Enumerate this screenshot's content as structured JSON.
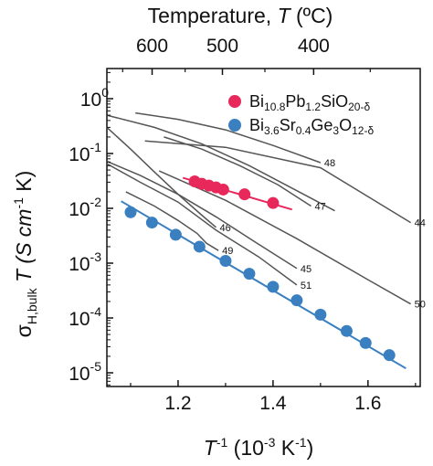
{
  "chart_data": {
    "type": "scatter",
    "xlabel": {
      "main": "T",
      "sup1": "-1",
      "rest": " (10",
      "sup2": "-3",
      "rest2": " K",
      "sup3": "-1",
      "close": ")"
    },
    "ylabel": {
      "sigma": "σ",
      "sub": "H,bulk",
      "rest": " T (S cm",
      "sup": "-1",
      "close": " K)"
    },
    "top_axis_label": {
      "pre": "Temperature, ",
      "var": "T",
      "post": " (ºC)"
    },
    "xlim": [
      1.05,
      1.71
    ],
    "ylim_log10": [
      -5.25,
      0.55
    ],
    "x_ticks": [
      1.2,
      1.4,
      1.6
    ],
    "x_tick_labels": [
      "1.2",
      "1.4",
      "1.6"
    ],
    "y_ticks_log10": [
      0,
      -1,
      -2,
      -3,
      -4,
      -5
    ],
    "y_tick_labels": [
      {
        "base": "10",
        "exp": "0"
      },
      {
        "base": "10",
        "exp": "-1"
      },
      {
        "base": "10",
        "exp": "-2"
      },
      {
        "base": "10",
        "exp": "-3"
      },
      {
        "base": "10",
        "exp": "-4"
      },
      {
        "base": "10",
        "exp": "-5"
      }
    ],
    "top_ticks_celsius": [
      600,
      500,
      400
    ],
    "top_tick_labels": [
      "600",
      "500",
      "400"
    ],
    "series": [
      {
        "name": "Bi10.8Pb1.2SiO20-δ",
        "legend": {
          "a": "Bi",
          "a_sub": "10.8",
          "b": "Pb",
          "b_sub": "1.2",
          "c": "SiO",
          "c_sub": "20-δ"
        },
        "color": "#e8285a",
        "x": [
          1.235,
          1.25,
          1.265,
          1.28,
          1.295,
          1.34,
          1.4
        ],
        "y": [
          0.031,
          0.028,
          0.026,
          0.024,
          0.022,
          0.018,
          0.0125
        ],
        "fit_x": [
          1.21,
          1.44
        ],
        "fit_y": [
          0.036,
          0.0095
        ]
      },
      {
        "name": "Bi3.6Sr0.4Ge3O12-δ",
        "legend": {
          "a": "Bi",
          "a_sub": "3.6",
          "b": "Sr",
          "b_sub": "0.4",
          "c": "Ge",
          "c_sub": "3",
          "d": "O",
          "d_sub": "12-δ"
        },
        "color": "#3a7fc0",
        "x": [
          1.1,
          1.145,
          1.195,
          1.245,
          1.3,
          1.35,
          1.4,
          1.45,
          1.5,
          1.555,
          1.595,
          1.645
        ],
        "y": [
          0.0085,
          0.0055,
          0.0033,
          0.002,
          0.0011,
          0.00064,
          0.00037,
          0.00021,
          0.000115,
          5.8e-05,
          3.5e-05,
          2.1e-05
        ],
        "fit_x": [
          1.08,
          1.68
        ],
        "fit_y": [
          0.0135,
          1.2e-05
        ]
      }
    ],
    "reference_curves": [
      {
        "label": "48",
        "x": [
          1.11,
          1.2,
          1.3,
          1.4,
          1.5
        ],
        "y": [
          0.55,
          0.42,
          0.27,
          0.14,
          0.068
        ]
      },
      {
        "label": "",
        "x": [
          1.05,
          1.15,
          1.25,
          1.35,
          1.45,
          1.53
        ],
        "y": [
          0.5,
          0.3,
          0.15,
          0.06,
          0.021,
          0.009
        ]
      },
      {
        "label": "47",
        "x": [
          1.17,
          1.25,
          1.33,
          1.41,
          1.48
        ],
        "y": [
          0.2,
          0.12,
          0.06,
          0.027,
          0.011
        ]
      },
      {
        "label": "44",
        "x": [
          1.13,
          1.3,
          1.5,
          1.69
        ],
        "y": [
          0.17,
          0.13,
          0.055,
          0.0055
        ]
      },
      {
        "label": "46",
        "x": [
          1.05,
          1.1,
          1.15,
          1.2,
          1.25,
          1.28
        ],
        "y": [
          0.3,
          0.12,
          0.046,
          0.018,
          0.0075,
          0.0045
        ]
      },
      {
        "label": "45",
        "x": [
          1.05,
          1.12,
          1.2,
          1.28,
          1.36,
          1.45
        ],
        "y": [
          0.072,
          0.04,
          0.018,
          0.007,
          0.0025,
          0.0008
        ]
      },
      {
        "label": "51",
        "x": [
          1.05,
          1.12,
          1.2,
          1.28,
          1.37,
          1.45
        ],
        "y": [
          0.065,
          0.03,
          0.013,
          0.004,
          0.0013,
          0.0004
        ]
      },
      {
        "label": "49",
        "x": [
          1.09,
          1.15,
          1.2,
          1.24,
          1.26,
          1.285
        ],
        "y": [
          0.02,
          0.011,
          0.006,
          0.0035,
          0.0023,
          0.0017
        ]
      },
      {
        "label": "50",
        "x": [
          1.16,
          1.3,
          1.45,
          1.6,
          1.69
        ],
        "y": [
          0.048,
          0.014,
          0.0028,
          0.0005,
          0.00018
        ]
      }
    ]
  }
}
